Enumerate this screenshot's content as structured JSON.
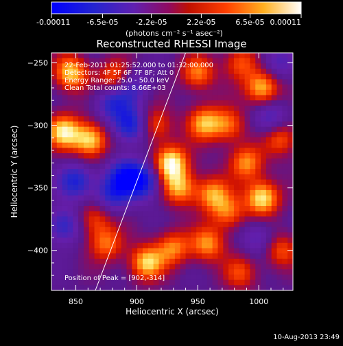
{
  "colorbar": {
    "tick_labels": [
      "-0.00011",
      "-6.5e-05",
      "-2.2e-05",
      "2.2e-05",
      "6.5e-05",
      "0.00011"
    ],
    "tick_values": [
      -0.00011,
      -6.5e-05,
      -2.2e-05,
      2.2e-05,
      6.5e-05,
      0.00011
    ],
    "range": [
      -0.00011,
      0.00011
    ],
    "units_label": "(photons cm⁻² s⁻¹ asec⁻²)",
    "colors": [
      "#0000ff",
      "#3030c0",
      "#7020a0",
      "#a01060",
      "#d02000",
      "#ff6000",
      "#ffc020",
      "#ffffff"
    ]
  },
  "info": {
    "time_range": "22-Feb-2011 01:25:52.000 to 01:32:00.000",
    "detectors": "Detectors: 4F 5F 6F 7F 8F; Att 0",
    "energy": "Energy Range: 25.0 - 50.0 keV",
    "clean": "Clean     Total counts: 8.66E+03",
    "peak": "Position of Peak = [902,-314]"
  },
  "footer": {
    "timestamp": "10-Aug-2013 23:49"
  },
  "chart_data": {
    "type": "heatmap",
    "title": "Reconstructed RHESSI Image",
    "xlabel": "Heliocentric X (arcsec)",
    "ylabel": "Heliocentric Y (arcsec)",
    "xlim": [
      830,
      1028
    ],
    "ylim": [
      -432,
      -242
    ],
    "x_ticks": [
      850,
      900,
      950,
      1000
    ],
    "y_ticks": [
      -250,
      -300,
      -350,
      -400
    ],
    "x_tick_labels": [
      "850",
      "900",
      "950",
      "1000"
    ],
    "y_tick_labels": [
      "−250",
      "−300",
      "−350",
      "−400"
    ],
    "limb_line": [
      [
        866,
        -432
      ],
      [
        940,
        -242
      ]
    ],
    "hotspots": [
      {
        "x": 928,
        "y": -330,
        "v": 1.0
      },
      {
        "x": 1003,
        "y": -358,
        "v": 0.95
      },
      {
        "x": 840,
        "y": -305,
        "v": 0.9
      },
      {
        "x": 846,
        "y": -258,
        "v": 0.85
      },
      {
        "x": 1003,
        "y": -270,
        "v": 0.85
      },
      {
        "x": 862,
        "y": -312,
        "v": 0.9
      },
      {
        "x": 908,
        "y": -410,
        "v": 0.85
      },
      {
        "x": 883,
        "y": -262,
        "v": 0.7
      },
      {
        "x": 955,
        "y": -298,
        "v": 0.75
      },
      {
        "x": 990,
        "y": -330,
        "v": 0.7
      },
      {
        "x": 975,
        "y": -300,
        "v": 0.6
      },
      {
        "x": 935,
        "y": -350,
        "v": 0.75
      },
      {
        "x": 962,
        "y": -355,
        "v": 0.7
      },
      {
        "x": 958,
        "y": -395,
        "v": 0.7
      },
      {
        "x": 930,
        "y": -398,
        "v": 0.65
      },
      {
        "x": 875,
        "y": -395,
        "v": 0.6
      },
      {
        "x": 865,
        "y": -375,
        "v": 0.5
      },
      {
        "x": 1018,
        "y": -310,
        "v": 0.6
      },
      {
        "x": 1018,
        "y": -400,
        "v": 0.55
      },
      {
        "x": 985,
        "y": -418,
        "v": 0.5
      },
      {
        "x": 950,
        "y": -258,
        "v": 0.65
      },
      {
        "x": 915,
        "y": -300,
        "v": 0.55
      },
      {
        "x": 975,
        "y": -370,
        "v": 0.6
      },
      {
        "x": 985,
        "y": -250,
        "v": 0.55
      },
      {
        "x": 880,
        "y": -282,
        "v": -0.6
      },
      {
        "x": 895,
        "y": -300,
        "v": -0.8
      },
      {
        "x": 890,
        "y": -340,
        "v": -0.7
      },
      {
        "x": 905,
        "y": -345,
        "v": -0.8
      },
      {
        "x": 880,
        "y": -355,
        "v": -0.6
      },
      {
        "x": 850,
        "y": -345,
        "v": -0.7
      },
      {
        "x": 840,
        "y": -380,
        "v": -0.6
      },
      {
        "x": 1010,
        "y": -295,
        "v": -0.5
      },
      {
        "x": 1015,
        "y": -250,
        "v": -0.4
      },
      {
        "x": 1000,
        "y": -390,
        "v": -0.4
      },
      {
        "x": 895,
        "y": -268,
        "v": -0.5
      }
    ]
  }
}
